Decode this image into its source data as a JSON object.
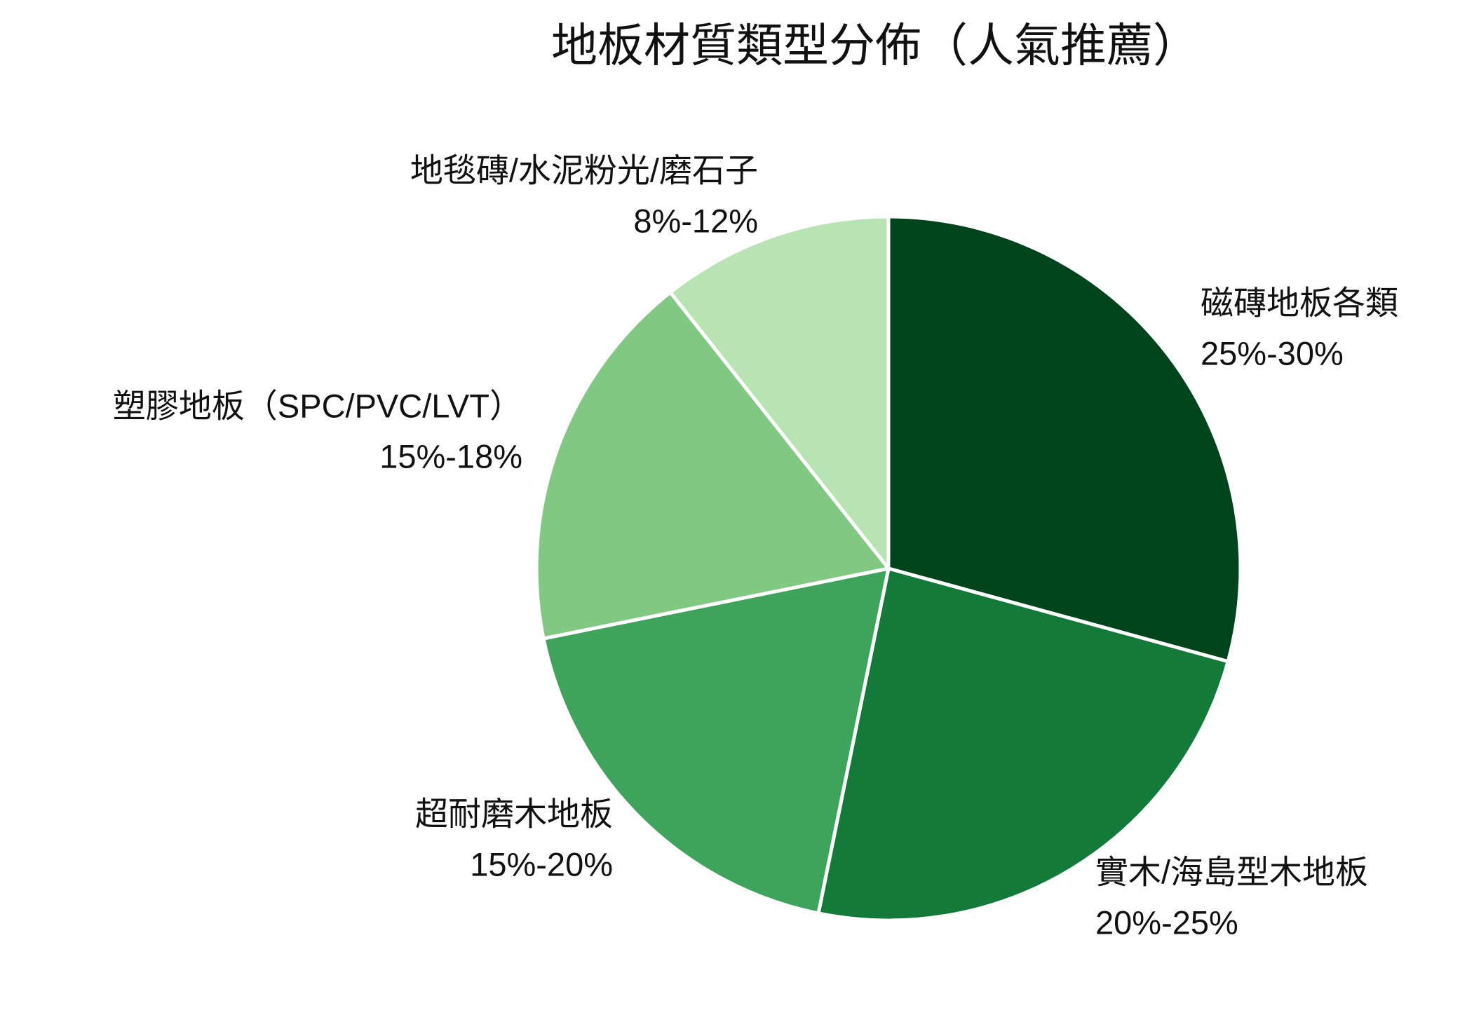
{
  "chart_data": {
    "type": "pie",
    "title": "地板材質類型分佈（人氣推薦）",
    "categories": [
      "磁磚地板各類",
      "實木/海島型木地板",
      "超耐磨木地板",
      "塑膠地板（SPC/PVC/LVT）",
      "地毯磚/水泥粉光/磨石子"
    ],
    "values": [
      27.5,
      22.5,
      17.5,
      16.5,
      10
    ],
    "value_labels": [
      "25%-30%",
      "20%-25%",
      "15%-20%",
      "15%-18%",
      "8%-12%"
    ],
    "colors": [
      "#00441b",
      "#137a39",
      "#3fa45b",
      "#81c882",
      "#b8e3b3"
    ]
  }
}
